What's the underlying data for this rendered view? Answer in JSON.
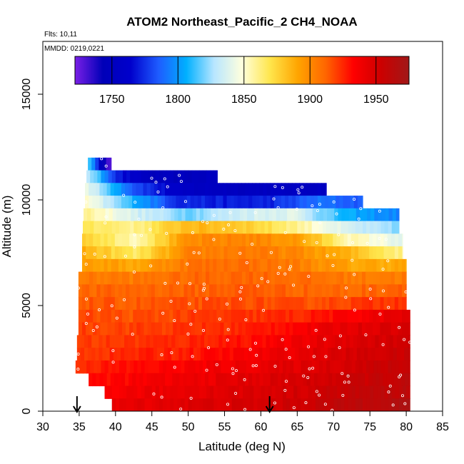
{
  "chart_data": {
    "type": "heatmap",
    "title": "ATOM2 Northeast_Pacific_2 CH4_NOAA",
    "flights_label": "Flts: 10,11",
    "dates_label": "MMDD: 0219,0221",
    "xlabel": "Latitude (deg N)",
    "ylabel": "Altitude (m)",
    "xlim": [
      30,
      85
    ],
    "ylim": [
      0,
      17500
    ],
    "xticks": [
      "30",
      "35",
      "40",
      "45",
      "50",
      "55",
      "60",
      "65",
      "70",
      "75",
      "80",
      "85"
    ],
    "yticks": [
      "0",
      "5000",
      "10000",
      "15000"
    ],
    "colorbar": {
      "range": [
        1722,
        1975
      ],
      "ticks": [
        "1750",
        "1800",
        "1850",
        "1900",
        "1950"
      ],
      "stops": [
        "#7a1fe6",
        "#0000b8",
        "#0000cc",
        "#1e5cff",
        "#00b0ff",
        "#b8e6ff",
        "#ffffdd",
        "#ffe64d",
        "#ffa500",
        "#ff6600",
        "#ff0000",
        "#cc0000",
        "#a01818"
      ]
    },
    "flight_markers_lat": [
      34.7,
      61.2
    ],
    "bands": [
      {
        "alt": [
          11400,
          12000
        ],
        "lat": [
          36.2,
          39.4
        ],
        "ch4": [
          1825,
          1760,
          1725
        ]
      },
      {
        "alt": [
          10800,
          11400
        ],
        "lat": [
          36.0,
          54.0
        ],
        "ch4": [
          1835,
          1770,
          1748,
          1748,
          1752
        ]
      },
      {
        "alt": [
          10200,
          10800
        ],
        "lat": [
          35.8,
          69.0
        ],
        "ch4": [
          1845,
          1785,
          1755,
          1752,
          1752,
          1755
        ]
      },
      {
        "alt": [
          9600,
          10200
        ],
        "lat": [
          35.8,
          74.0
        ],
        "ch4": [
          1850,
          1810,
          1775,
          1770,
          1772,
          1790,
          1785
        ]
      },
      {
        "alt": [
          9000,
          9600
        ],
        "lat": [
          35.6,
          79.0
        ],
        "ch4": [
          1862,
          1835,
          1820,
          1835,
          1840,
          1805,
          1795
        ]
      },
      {
        "alt": [
          8400,
          9000
        ],
        "lat": [
          35.5,
          79.0
        ],
        "ch4": [
          1870,
          1860,
          1885,
          1880,
          1862,
          1835,
          1820
        ]
      },
      {
        "alt": [
          7800,
          8400
        ],
        "lat": [
          35.4,
          79.5
        ],
        "ch4": [
          1880,
          1855,
          1898,
          1902,
          1895,
          1855,
          1840
        ]
      },
      {
        "alt": [
          7200,
          7800
        ],
        "lat": [
          35.4,
          79.5
        ],
        "ch4": [
          1888,
          1865,
          1902,
          1906,
          1900,
          1885,
          1860
        ]
      },
      {
        "alt": [
          6600,
          7200
        ],
        "lat": [
          35.4,
          80.0
        ],
        "ch4": [
          1895,
          1890,
          1908,
          1910,
          1904,
          1890,
          1890
        ]
      },
      {
        "alt": [
          6000,
          6600
        ],
        "lat": [
          34.9,
          80.0
        ],
        "ch4": [
          1905,
          1905,
          1910,
          1912,
          1910,
          1905,
          1905
        ]
      },
      {
        "alt": [
          5400,
          6000
        ],
        "lat": [
          34.9,
          80.0
        ],
        "ch4": [
          1910,
          1912,
          1912,
          1915,
          1912,
          1910,
          1915
        ]
      },
      {
        "alt": [
          4800,
          5400
        ],
        "lat": [
          34.9,
          80.0
        ],
        "ch4": [
          1915,
          1914,
          1916,
          1918,
          1916,
          1920,
          1925
        ]
      },
      {
        "alt": [
          4200,
          4800
        ],
        "lat": [
          34.9,
          80.5
        ],
        "ch4": [
          1918,
          1916,
          1920,
          1922,
          1925,
          1935,
          1945
        ]
      },
      {
        "alt": [
          3600,
          4200
        ],
        "lat": [
          34.9,
          80.5
        ],
        "ch4": [
          1920,
          1920,
          1922,
          1925,
          1935,
          1945,
          1950
        ]
      },
      {
        "alt": [
          3000,
          3600
        ],
        "lat": [
          34.7,
          80.5
        ],
        "ch4": [
          1920,
          1922,
          1925,
          1930,
          1938,
          1948,
          1952
        ]
      },
      {
        "alt": [
          2400,
          3000
        ],
        "lat": [
          34.7,
          80.5
        ],
        "ch4": [
          1922,
          1925,
          1928,
          1935,
          1942,
          1950,
          1955
        ]
      },
      {
        "alt": [
          1800,
          2400
        ],
        "lat": [
          34.5,
          80.5
        ],
        "ch4": [
          1925,
          1930,
          1935,
          1940,
          1945,
          1952,
          1958
        ]
      },
      {
        "alt": [
          1200,
          1800
        ],
        "lat": [
          36.3,
          80.5
        ],
        "ch4": [
          1930,
          1935,
          1940,
          1945,
          1950,
          1955,
          1960
        ]
      },
      {
        "alt": [
          600,
          1200
        ],
        "lat": [
          38.5,
          80.5
        ],
        "ch4": [
          1935,
          1940,
          1945,
          1948,
          1952,
          1958,
          1962
        ]
      },
      {
        "alt": [
          0,
          600
        ],
        "lat": [
          39.5,
          80.5
        ],
        "ch4": [
          1940,
          1945,
          1948,
          1950,
          1955,
          1962,
          1968
        ]
      }
    ]
  }
}
